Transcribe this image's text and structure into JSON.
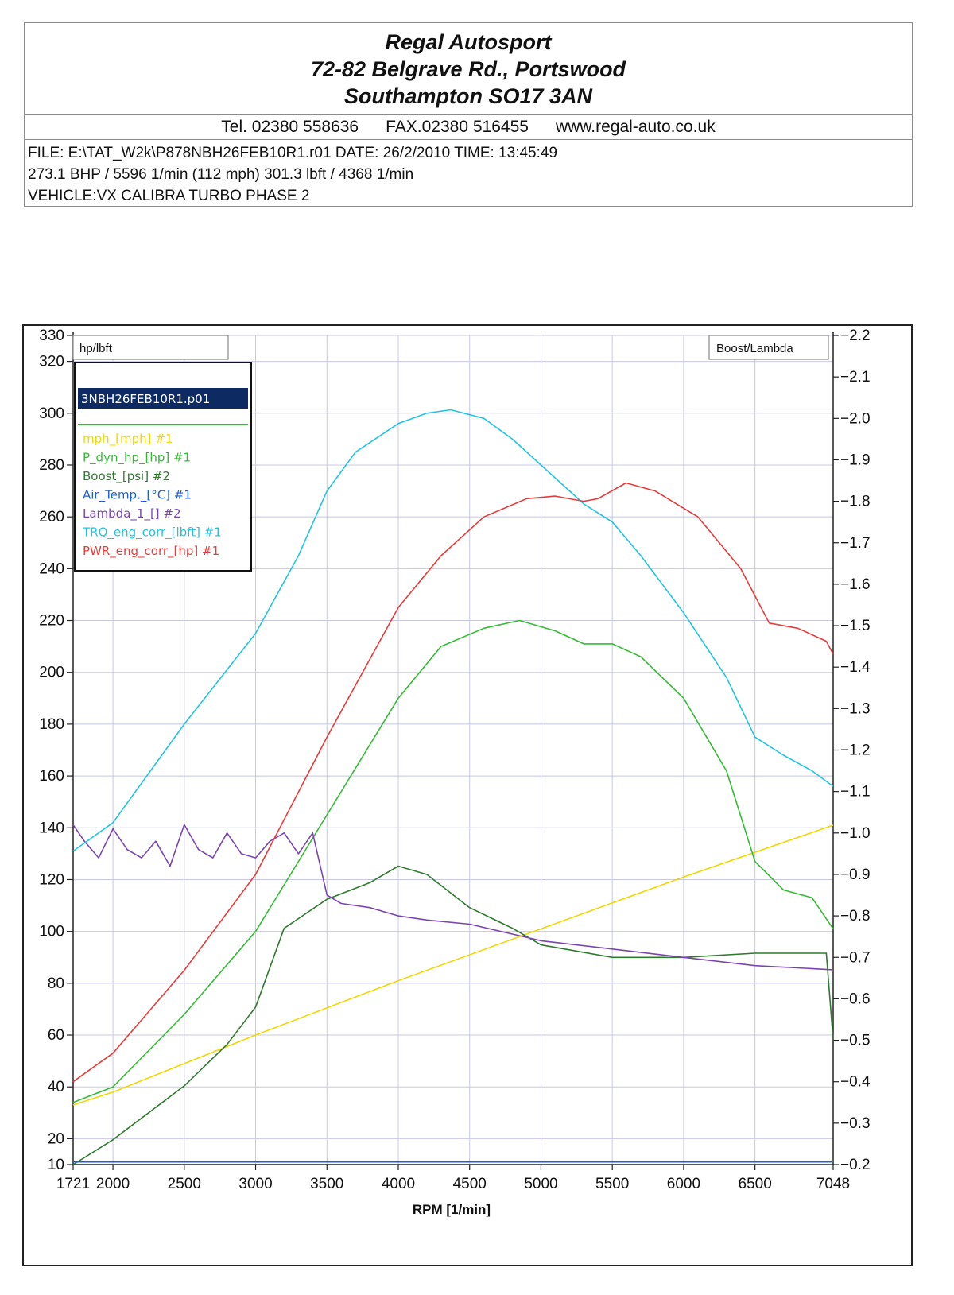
{
  "header": {
    "company_lines": [
      "Regal Autosport",
      "72-82 Belgrave Rd., Portswood",
      "Southampton SO17 3AN"
    ],
    "tel": "Tel. 02380 558636",
    "fax": "FAX.02380 516455",
    "web": "www.regal-auto.co.uk",
    "file_line": "FILE: E:\\TAT_W2k\\P878NBH26FEB10R1.r01  DATE: 26/2/2010  TIME: 13:45:49",
    "result_line": "273.1 BHP / 5596 1/min (112 mph)    301.3 lbft / 4368 1/min",
    "vehicle_line": "VEHICLE:VX CALIBRA TURBO PHASE 2"
  },
  "chart_data": {
    "type": "line",
    "xlabel": "RPM  [1/min]",
    "left_axis_label": "hp/lbft",
    "right_axis_label": "Boost/Lambda",
    "xlim": [
      1721,
      7048
    ],
    "x_ticks": [
      1721,
      2000,
      2500,
      3000,
      3500,
      4000,
      4500,
      5000,
      5500,
      6000,
      6500,
      7048
    ],
    "ylim_left": [
      10,
      330
    ],
    "y_ticks_left": [
      10,
      20,
      40,
      60,
      80,
      100,
      120,
      140,
      160,
      180,
      200,
      220,
      240,
      260,
      280,
      300,
      320,
      330
    ],
    "ylim_right": [
      -0.2,
      -2.2
    ],
    "y_ticks_right": [
      -2.2,
      -2.1,
      -2.0,
      -1.9,
      -1.8,
      -1.7,
      -1.6,
      -1.5,
      -1.4,
      -1.3,
      -1.2,
      -1.1,
      -1.0,
      -0.9,
      -0.8,
      -0.7,
      -0.6,
      -0.5,
      -0.4,
      -0.3,
      -0.2
    ],
    "grid": true,
    "legend_position": "top-left",
    "legend_file": "3NBH26FEB10R1.p01",
    "series": [
      {
        "name": "mph_[mph] #1",
        "color": "#f0d800",
        "axis": "left",
        "x": [
          1721,
          2000,
          3000,
          4000,
          5000,
          6000,
          7048
        ],
        "y": [
          33,
          38,
          60,
          81,
          101,
          121,
          141
        ]
      },
      {
        "name": "P_dyn_hp_[hp] #1",
        "color": "#33bb33",
        "axis": "left",
        "x": [
          1721,
          2000,
          2500,
          3000,
          3500,
          4000,
          4300,
          4600,
          4850,
          5100,
          5300,
          5500,
          5700,
          6000,
          6300,
          6500,
          6700,
          6900,
          7048
        ],
        "y": [
          34,
          40,
          68,
          100,
          145,
          190,
          210,
          217,
          220,
          216,
          211,
          211,
          206,
          190,
          162,
          127,
          116,
          113,
          101
        ]
      },
      {
        "name": "Boost_[psi] #2",
        "color": "#2f7a2f",
        "axis": "right",
        "x": [
          1721,
          2000,
          2500,
          2800,
          3000,
          3200,
          3500,
          3800,
          4000,
          4200,
          4500,
          4800,
          5000,
          5500,
          6000,
          6500,
          7000,
          7048
        ],
        "y": [
          -0.2,
          -0.26,
          -0.39,
          -0.49,
          -0.58,
          -0.77,
          -0.84,
          -0.88,
          -0.92,
          -0.9,
          -0.82,
          -0.77,
          -0.73,
          -0.7,
          -0.7,
          -0.71,
          -0.71,
          -0.5
        ]
      },
      {
        "name": "Air_Temp._[°C] #1",
        "color": "#1e5fd6",
        "axis": "left",
        "x": [
          1721,
          7048
        ],
        "y": [
          11,
          11
        ]
      },
      {
        "name": "Lambda_1_[] #2",
        "color": "#7a45b0",
        "axis": "right",
        "x": [
          1721,
          1800,
          1900,
          2000,
          2100,
          2200,
          2300,
          2400,
          2500,
          2600,
          2700,
          2800,
          2900,
          3000,
          3100,
          3200,
          3300,
          3400,
          3500,
          3600,
          3800,
          4000,
          4200,
          4500,
          5000,
          5500,
          6000,
          6500,
          7048
        ],
        "y": [
          -1.02,
          -0.98,
          -0.94,
          -1.01,
          -0.96,
          -0.94,
          -0.98,
          -0.92,
          -1.02,
          -0.96,
          -0.94,
          -1.0,
          -0.95,
          -0.94,
          -0.98,
          -1.0,
          -0.95,
          -1.0,
          -0.85,
          -0.83,
          -0.82,
          -0.8,
          -0.79,
          -0.78,
          -0.74,
          -0.72,
          -0.7,
          -0.68,
          -0.67
        ]
      },
      {
        "name": "TRQ_eng_corr_[lbft] #1",
        "color": "#22c4e6",
        "axis": "left",
        "x": [
          1721,
          2000,
          2500,
          3000,
          3300,
          3500,
          3700,
          4000,
          4200,
          4368,
          4600,
          4800,
          5000,
          5300,
          5500,
          5700,
          6000,
          6300,
          6500,
          6700,
          6900,
          7048
        ],
        "y": [
          131,
          142,
          180,
          215,
          245,
          270,
          285,
          296,
          300,
          301.3,
          298,
          290,
          280,
          265,
          258,
          245,
          223,
          198,
          175,
          168,
          162,
          156
        ]
      },
      {
        "name": "PWR_eng_corr_[hp] #1",
        "color": "#e83a3a",
        "axis": "left",
        "x": [
          1721,
          2000,
          2500,
          3000,
          3500,
          4000,
          4300,
          4600,
          4900,
          5100,
          5300,
          5400,
          5596,
          5800,
          6100,
          6400,
          6600,
          6800,
          7000,
          7048
        ],
        "y": [
          42,
          53,
          85,
          122,
          175,
          225,
          245,
          260,
          267,
          268,
          266,
          267,
          273.1,
          270,
          260,
          240,
          219,
          217,
          212,
          207
        ]
      }
    ]
  }
}
